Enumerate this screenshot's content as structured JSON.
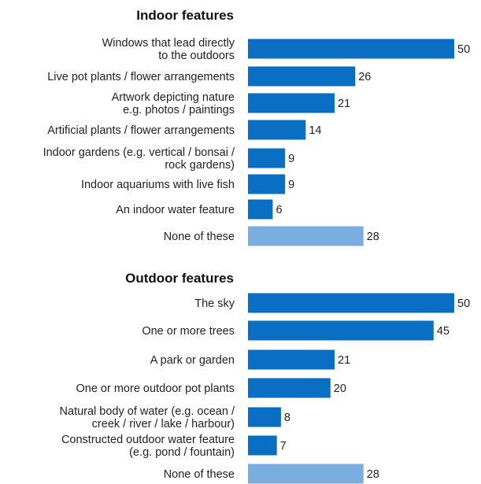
{
  "chart_data": [
    {
      "type": "bar",
      "orientation": "horizontal",
      "title": "Indoor features",
      "categories": [
        "Windows that lead directly\nto the outdoors",
        "Live pot plants / flower arrangements",
        "Artwork depicting nature\ne.g. photos / paintings",
        "Artificial plants / flower arrangements",
        "Indoor gardens (e.g. vertical / bonsai /\nrock gardens)",
        "Indoor aquariums with live fish",
        "An indoor water feature",
        "None of these"
      ],
      "values": [
        50,
        26,
        21,
        14,
        9,
        9,
        6,
        28
      ],
      "bar_colors": [
        "#0a6fc2",
        "#0a6fc2",
        "#0a6fc2",
        "#0a6fc2",
        "#0a6fc2",
        "#0a6fc2",
        "#0a6fc2",
        "#7aaee0"
      ],
      "xlim": [
        0,
        50
      ],
      "grid": false,
      "legend": "none"
    },
    {
      "type": "bar",
      "orientation": "horizontal",
      "title": "Outdoor features",
      "categories": [
        "The sky",
        "One or more trees",
        "A park or garden",
        "One or more outdoor pot plants",
        "Natural body of water (e.g. ocean /\ncreek / river / lake / harbour)",
        "Constructed outdoor water feature\n(e.g. pond / fountain)",
        "None of these"
      ],
      "values": [
        50,
        45,
        21,
        20,
        8,
        7,
        28
      ],
      "bar_colors": [
        "#0a6fc2",
        "#0a6fc2",
        "#0a6fc2",
        "#0a6fc2",
        "#0a6fc2",
        "#0a6fc2",
        "#7aaee0"
      ],
      "xlim": [
        0,
        50
      ],
      "grid": false,
      "legend": "none"
    }
  ]
}
